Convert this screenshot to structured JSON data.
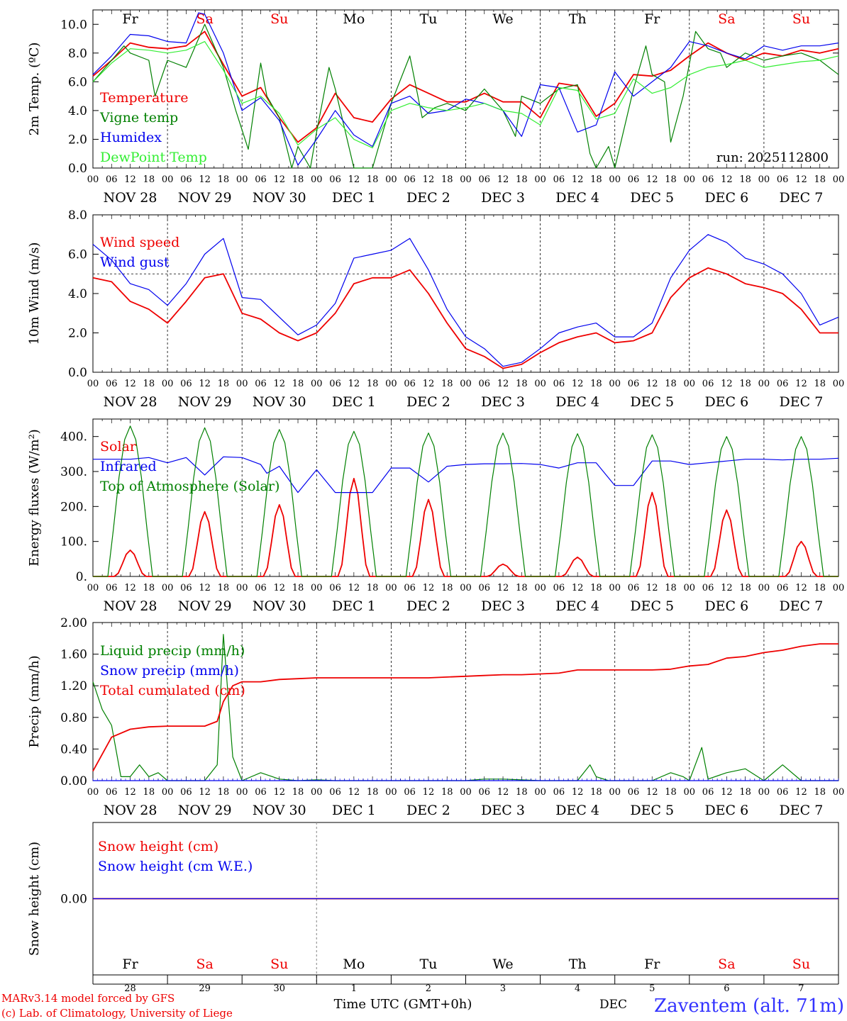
{
  "days": [
    {
      "abbr": "Fr",
      "weekend": false,
      "label": "NOV 28",
      "num": "28"
    },
    {
      "abbr": "Sa",
      "weekend": true,
      "label": "NOV 29",
      "num": "29"
    },
    {
      "abbr": "Su",
      "weekend": true,
      "label": "NOV 30",
      "num": "30"
    },
    {
      "abbr": "Mo",
      "weekend": false,
      "label": "DEC  1",
      "num": "1"
    },
    {
      "abbr": "Tu",
      "weekend": false,
      "label": "DEC  2",
      "num": "2"
    },
    {
      "abbr": "We",
      "weekend": false,
      "label": "DEC  3",
      "num": "3"
    },
    {
      "abbr": "Th",
      "weekend": false,
      "label": "DEC  4",
      "num": "4"
    },
    {
      "abbr": "Fr",
      "weekend": false,
      "label": "DEC  5",
      "num": "5"
    },
    {
      "abbr": "Sa",
      "weekend": true,
      "label": "DEC  6",
      "num": "6"
    },
    {
      "abbr": "Su",
      "weekend": true,
      "label": "DEC  7",
      "num": "7"
    }
  ],
  "hour_ticks": [
    "00",
    "06",
    "12",
    "18"
  ],
  "colors": {
    "red": "#ee0000",
    "green": "#008000",
    "blue": "#0000ee",
    "lightgreen": "#33ee33",
    "weekend": "#ee0000",
    "text": "#000000",
    "footer_blue": "#3333ff"
  },
  "run_label": "run: 2025112800",
  "footer": {
    "model": "MARv3.14 model forced by GFS",
    "lab": "(c) Lab. of Climatology, University of Liege",
    "time_axis": "Time UTC (GMT+0h)",
    "month": "DEC",
    "station": "Zaventem (alt. 71m)"
  },
  "chart_data": [
    {
      "type": "line",
      "ylabel": "2m Temp. (ºC)",
      "ylim": [
        0,
        11
      ],
      "yticks": [
        "0.0",
        "2.0",
        "4.0",
        "6.0",
        "8.0",
        "10.0"
      ],
      "x_hours_start": 0,
      "x_hours_end": 240,
      "series": [
        {
          "name": "Temperature",
          "color": "red",
          "x": [
            0,
            6,
            12,
            18,
            24,
            30,
            36,
            42,
            48,
            54,
            60,
            66,
            72,
            78,
            84,
            90,
            96,
            102,
            108,
            114,
            120,
            126,
            132,
            138,
            144,
            150,
            156,
            162,
            168,
            174,
            180,
            186,
            192,
            198,
            204,
            210,
            216,
            222,
            228,
            234,
            240
          ],
          "y": [
            6.4,
            7.5,
            8.7,
            8.4,
            8.3,
            8.5,
            9.5,
            7.2,
            5.0,
            5.6,
            3.5,
            1.8,
            2.8,
            5.2,
            3.5,
            3.2,
            4.8,
            5.8,
            5.2,
            4.6,
            4.6,
            5.2,
            4.6,
            4.6,
            3.5,
            5.9,
            5.7,
            3.6,
            4.5,
            6.5,
            6.4,
            6.8,
            7.8,
            8.7,
            8.0,
            7.5,
            8.0,
            7.8,
            8.2,
            8.0,
            8.3
          ]
        },
        {
          "name": "Vigne temp",
          "color": "green",
          "x": [
            0,
            6,
            10,
            12,
            18,
            20,
            24,
            30,
            36,
            42,
            46,
            50,
            54,
            56,
            60,
            64,
            66,
            70,
            72,
            76,
            78,
            84,
            90,
            96,
            102,
            106,
            110,
            114,
            120,
            126,
            132,
            136,
            138,
            144,
            150,
            156,
            160,
            162,
            166,
            168,
            174,
            178,
            180,
            184,
            186,
            190,
            194,
            198,
            202,
            204,
            210,
            216,
            222,
            228,
            234,
            240
          ],
          "y": [
            6.0,
            7.5,
            8.5,
            8.0,
            7.5,
            5.0,
            7.5,
            7.0,
            10.0,
            7.0,
            4.0,
            1.3,
            7.3,
            5.0,
            3.5,
            0.0,
            1.5,
            0.0,
            2.5,
            7.0,
            5.5,
            0.0,
            0.0,
            4.5,
            7.8,
            3.5,
            4.2,
            4.5,
            4.0,
            5.5,
            4.0,
            2.2,
            5.0,
            4.5,
            5.5,
            5.8,
            1.0,
            0.0,
            1.5,
            0.0,
            5.5,
            8.5,
            6.5,
            6.0,
            1.8,
            5.0,
            9.5,
            8.3,
            8.0,
            7.0,
            8.0,
            7.5,
            7.8,
            8.0,
            7.5,
            6.5
          ]
        },
        {
          "name": "Humidex",
          "color": "blue",
          "x": [
            0,
            6,
            12,
            18,
            24,
            30,
            34,
            36,
            42,
            48,
            54,
            60,
            66,
            72,
            78,
            84,
            90,
            96,
            102,
            108,
            114,
            120,
            126,
            132,
            138,
            144,
            150,
            156,
            162,
            168,
            174,
            180,
            186,
            192,
            198,
            204,
            210,
            216,
            222,
            228,
            234,
            240
          ],
          "y": [
            6.5,
            7.8,
            9.3,
            9.2,
            8.8,
            8.7,
            10.8,
            10.7,
            8.0,
            4.0,
            4.9,
            3.3,
            0.2,
            2.0,
            4.0,
            2.3,
            1.5,
            4.5,
            5.0,
            3.8,
            4.0,
            4.8,
            4.5,
            4.0,
            2.2,
            5.8,
            5.6,
            2.5,
            3.0,
            6.7,
            5.0,
            6.0,
            7.0,
            8.8,
            8.5,
            8.0,
            7.6,
            8.5,
            8.2,
            8.5,
            8.5,
            8.7
          ]
        },
        {
          "name": "DewPoint Temp",
          "color": "lightgreen",
          "x": [
            0,
            6,
            12,
            18,
            24,
            30,
            36,
            42,
            48,
            54,
            60,
            66,
            72,
            78,
            84,
            90,
            96,
            102,
            108,
            114,
            120,
            126,
            132,
            138,
            144,
            150,
            156,
            162,
            168,
            174,
            180,
            186,
            192,
            198,
            204,
            210,
            216,
            222,
            228,
            234,
            240
          ],
          "y": [
            6.0,
            7.3,
            8.3,
            8.2,
            8.0,
            8.2,
            8.8,
            6.8,
            4.5,
            5.0,
            3.8,
            1.6,
            2.7,
            3.5,
            2.0,
            1.4,
            4.0,
            4.5,
            4.2,
            4.0,
            4.2,
            4.5,
            4.0,
            3.8,
            3.0,
            5.6,
            5.4,
            3.4,
            3.8,
            6.2,
            5.2,
            5.6,
            6.5,
            7.0,
            7.2,
            7.5,
            7.0,
            7.2,
            7.4,
            7.5,
            7.8
          ]
        }
      ]
    },
    {
      "type": "line",
      "ylabel": "10m Wind (m/s)",
      "ylim": [
        0,
        8
      ],
      "yticks": [
        "0.0",
        "2.0",
        "4.0",
        "6.0",
        "8.0"
      ],
      "ref_line": 5,
      "series": [
        {
          "name": "Wind speed",
          "color": "red",
          "x": [
            0,
            6,
            12,
            18,
            24,
            30,
            36,
            42,
            48,
            54,
            60,
            66,
            72,
            78,
            84,
            90,
            96,
            102,
            108,
            114,
            120,
            126,
            132,
            138,
            144,
            150,
            156,
            162,
            168,
            174,
            180,
            186,
            192,
            198,
            204,
            210,
            216,
            222,
            228,
            234,
            240
          ],
          "y": [
            4.8,
            4.6,
            3.6,
            3.2,
            2.5,
            3.6,
            4.8,
            5.0,
            3.0,
            2.7,
            2.0,
            1.6,
            2.0,
            3.0,
            4.5,
            4.8,
            4.8,
            5.2,
            4.0,
            2.5,
            1.2,
            0.8,
            0.2,
            0.4,
            1.0,
            1.5,
            1.8,
            2.0,
            1.5,
            1.6,
            2.0,
            3.8,
            4.8,
            5.3,
            5.0,
            4.5,
            4.3,
            4.0,
            3.2,
            2.0,
            2.0
          ]
        },
        {
          "name": "Wind gust",
          "color": "blue",
          "x": [
            0,
            6,
            12,
            18,
            24,
            30,
            36,
            42,
            48,
            54,
            60,
            66,
            72,
            78,
            84,
            90,
            96,
            102,
            108,
            114,
            120,
            126,
            132,
            138,
            144,
            150,
            156,
            162,
            168,
            174,
            180,
            186,
            192,
            198,
            204,
            210,
            216,
            222,
            228,
            234,
            240
          ],
          "y": [
            6.5,
            5.7,
            4.5,
            4.2,
            3.4,
            4.5,
            6.0,
            6.8,
            3.8,
            3.7,
            2.8,
            1.9,
            2.4,
            3.5,
            5.8,
            6.0,
            6.2,
            6.8,
            5.2,
            3.2,
            1.8,
            1.2,
            0.3,
            0.5,
            1.2,
            2.0,
            2.3,
            2.5,
            1.8,
            1.8,
            2.5,
            4.8,
            6.2,
            7.0,
            6.6,
            5.8,
            5.5,
            5.0,
            4.0,
            2.4,
            2.8
          ]
        }
      ],
      "legend": [
        "Wind speed",
        "Wind gust"
      ]
    },
    {
      "type": "line",
      "ylabel": "Energy fluxes (W/m²)",
      "ylim": [
        0,
        450
      ],
      "yticks": [
        "0.",
        "100.",
        "200.",
        "300.",
        "400."
      ],
      "series": [
        {
          "name": "Solar",
          "color": "red",
          "peaks": [
            75,
            185,
            205,
            280,
            220,
            35,
            55,
            240,
            190,
            100
          ]
        },
        {
          "name": "Infrared",
          "color": "blue",
          "x": [
            0,
            12,
            18,
            24,
            30,
            36,
            42,
            48,
            54,
            56,
            60,
            66,
            72,
            78,
            84,
            90,
            96,
            102,
            108,
            114,
            120,
            126,
            132,
            138,
            144,
            150,
            156,
            162,
            168,
            174,
            180,
            186,
            192,
            198,
            204,
            210,
            216,
            222,
            228,
            234,
            240
          ],
          "y": [
            335,
            335,
            340,
            325,
            340,
            290,
            342,
            340,
            320,
            295,
            315,
            240,
            305,
            240,
            240,
            240,
            310,
            310,
            270,
            315,
            320,
            322,
            322,
            323,
            320,
            310,
            325,
            325,
            260,
            260,
            330,
            330,
            320,
            325,
            330,
            335,
            335,
            333,
            335,
            335,
            338
          ]
        },
        {
          "name": "Top of Atmosphere (Solar)",
          "color": "green",
          "peaks": [
            430,
            425,
            420,
            415,
            410,
            410,
            408,
            405,
            400,
            400
          ]
        }
      ]
    },
    {
      "type": "line",
      "ylabel": "Precip (mm/h)",
      "ylim": [
        0,
        2
      ],
      "yticks": [
        "0.00",
        "0.40",
        "0.80",
        "1.20",
        "1.60",
        "2.00"
      ],
      "series": [
        {
          "name": "Liquid precip (mm/h)",
          "color": "green",
          "x": [
            0,
            3,
            6,
            9,
            12,
            15,
            18,
            21,
            24,
            30,
            36,
            40,
            42,
            45,
            48,
            54,
            60,
            66,
            72,
            78,
            84,
            90,
            96,
            102,
            108,
            114,
            120,
            126,
            132,
            138,
            144,
            150,
            156,
            160,
            162,
            166,
            168,
            174,
            180,
            186,
            190,
            192,
            196,
            198,
            204,
            210,
            216,
            222,
            228,
            234,
            240
          ],
          "y": [
            1.25,
            0.9,
            0.7,
            0.05,
            0.05,
            0.2,
            0.05,
            0.1,
            0.0,
            0.0,
            0.0,
            0.2,
            1.85,
            0.3,
            0.0,
            0.1,
            0.02,
            0.0,
            0.01,
            0.0,
            0.0,
            0.0,
            0.0,
            0.0,
            0.0,
            0.0,
            0.0,
            0.02,
            0.02,
            0.01,
            0.0,
            0.0,
            0.0,
            0.2,
            0.05,
            0.0,
            0.0,
            0.0,
            0.0,
            0.1,
            0.05,
            0.0,
            0.42,
            0.02,
            0.1,
            0.15,
            0.0,
            0.2,
            0.0,
            0.0,
            0.0
          ]
        },
        {
          "name": "Snow precip (mm/h)",
          "color": "blue",
          "x": [
            0,
            240
          ],
          "y": [
            0,
            0
          ]
        },
        {
          "name": "Total cumulated (cm)",
          "color": "red",
          "x": [
            0,
            6,
            12,
            18,
            24,
            30,
            36,
            40,
            42,
            45,
            48,
            54,
            60,
            66,
            72,
            78,
            84,
            90,
            96,
            102,
            108,
            114,
            120,
            126,
            132,
            138,
            144,
            150,
            156,
            162,
            168,
            174,
            180,
            186,
            192,
            198,
            204,
            210,
            216,
            222,
            228,
            234,
            240
          ],
          "y": [
            0.12,
            0.55,
            0.65,
            0.68,
            0.69,
            0.69,
            0.69,
            0.75,
            1.0,
            1.2,
            1.25,
            1.25,
            1.28,
            1.29,
            1.3,
            1.3,
            1.3,
            1.3,
            1.3,
            1.3,
            1.3,
            1.31,
            1.32,
            1.33,
            1.34,
            1.34,
            1.35,
            1.36,
            1.4,
            1.4,
            1.4,
            1.4,
            1.4,
            1.41,
            1.45,
            1.47,
            1.55,
            1.57,
            1.62,
            1.65,
            1.7,
            1.73,
            1.73
          ]
        }
      ]
    },
    {
      "type": "line",
      "ylabel": "Snow height (cm)",
      "ylim": [
        -1,
        1
      ],
      "yticks": [
        "0.00"
      ],
      "series": [
        {
          "name": "Snow height (cm)",
          "color": "red",
          "x": [
            0,
            240
          ],
          "y": [
            0,
            0
          ]
        },
        {
          "name": "Snow height (cm W.E.)",
          "color": "blue",
          "x": [
            0,
            240
          ],
          "y": [
            0,
            0
          ]
        }
      ]
    }
  ]
}
